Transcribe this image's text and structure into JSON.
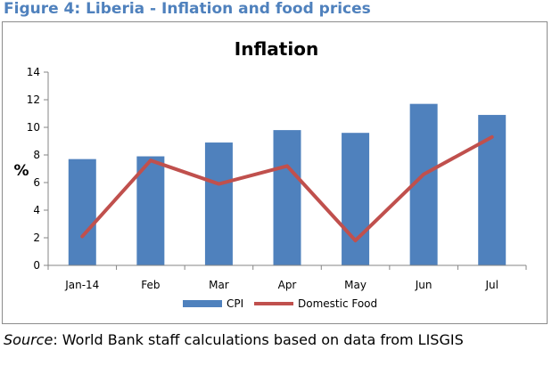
{
  "figure_title": "Figure 4: Liberia - Inflation and food prices",
  "source": {
    "label": "Source",
    "text": ": World Bank staff calculations based on data from LISGIS"
  },
  "colors": {
    "title": "#4f81bd",
    "bar": "#4f81bd",
    "line": "#c0504d"
  },
  "chart_data": {
    "type": "bar",
    "title": "Inflation",
    "ylabel": "%",
    "xlabel": "",
    "categories": [
      "Jan-14",
      "Feb",
      "Mar",
      "Apr",
      "May",
      "Jun",
      "Jul"
    ],
    "ylim": [
      0,
      14
    ],
    "yticks": [
      0,
      2,
      4,
      6,
      8,
      10,
      12,
      14
    ],
    "grid": false,
    "legend_position": "bottom",
    "series": [
      {
        "name": "CPI",
        "type": "bar",
        "values": [
          7.7,
          7.9,
          8.9,
          9.8,
          9.6,
          11.7,
          10.9
        ]
      },
      {
        "name": "Domestic Food",
        "type": "line",
        "values": [
          2.1,
          7.6,
          5.9,
          7.2,
          1.8,
          6.6,
          9.3
        ]
      }
    ]
  }
}
